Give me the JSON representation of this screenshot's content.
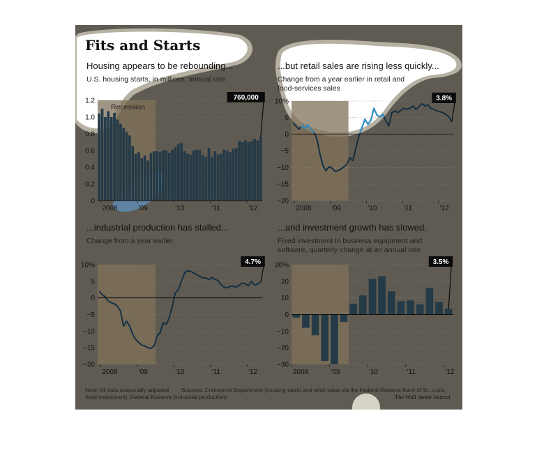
{
  "title": "Fits and Starts",
  "footer": {
    "note": "Note: All data seasonally adjusted",
    "sources_line1": "Sources: Commerce Department (housing starts and retail sales via the Federal Reserve Bank of St. Louis,",
    "sources_line2": "fixed investment); Federal Reserve (industrial production)",
    "credit": "The Wall Street Journal"
  },
  "colors": {
    "background": "#5f5b52",
    "recession_band": "#807259",
    "bar_fill": "#253a47",
    "line": "#143044",
    "callout": "#0b0b0b",
    "highlight_bar": "#8cc0e2",
    "highlight_line": "#2e8ec9",
    "blob": "#ffffff",
    "blob_ring": "#b6b1a3",
    "blue_blob": "#5f84a3",
    "blob_bottom": "#d7d2c6"
  },
  "chart_data": [
    {
      "type": "bar",
      "heading": "Housing appears to be rebounding...",
      "subtitle": [
        "U.S. housing starts, in millions, annual rate"
      ],
      "recession_label": "Recession",
      "callout": "760,000",
      "x_tick_labels": [
        "2008",
        "'09",
        "'10",
        "'11",
        "'12"
      ],
      "x_tick_positions": [
        2008,
        2009,
        2010,
        2011,
        2012
      ],
      "x_start": 2007.917,
      "x_end": 2012.417,
      "recession": [
        2007.917,
        2009.5
      ],
      "y_ticks": [
        0,
        0.2,
        0.4,
        0.6,
        0.8,
        1.0,
        1.2
      ],
      "y_tick_labels": [
        "0",
        "0.2",
        "0.4",
        "0.6",
        "0.8",
        "1.0",
        "1.2"
      ],
      "ylim": [
        0,
        1.2
      ],
      "values": [
        1.04,
        1.1,
        1.0,
        1.07,
        1.0,
        1.05,
        0.97,
        0.92,
        0.87,
        0.82,
        0.78,
        0.65,
        0.56,
        0.58,
        0.51,
        0.54,
        0.48,
        0.57,
        0.59,
        0.59,
        0.58,
        0.6,
        0.6,
        0.57,
        0.61,
        0.64,
        0.68,
        0.69,
        0.59,
        0.56,
        0.55,
        0.6,
        0.61,
        0.61,
        0.54,
        0.52,
        0.63,
        0.52,
        0.59,
        0.55,
        0.56,
        0.61,
        0.6,
        0.58,
        0.62,
        0.63,
        0.71,
        0.7,
        0.72,
        0.7,
        0.71,
        0.74,
        0.72,
        0.76
      ]
    },
    {
      "type": "line",
      "heading": "...but retail sales are rising less quickly...",
      "subtitle": [
        "Change from a year earlier in retail and",
        "food-services sales"
      ],
      "callout": "3.8%",
      "x_tick_labels": [
        "2008",
        "'09",
        "'10",
        "'11",
        "'12"
      ],
      "x_tick_positions": [
        2008,
        2009,
        2010,
        2011,
        2012
      ],
      "x_start": 2007.917,
      "x_end": 2012.417,
      "recession": [
        2007.917,
        2009.5
      ],
      "y_ticks": [
        -20,
        -15,
        -10,
        -5,
        0,
        5,
        10
      ],
      "y_tick_labels": [
        "−20",
        "−15",
        "−10",
        "−5",
        "0",
        "5",
        "10%"
      ],
      "ylim": [
        -20,
        10
      ],
      "values": [
        3.5,
        2.4,
        1.5,
        2.6,
        1.8,
        2.8,
        1.4,
        0.6,
        -1.5,
        -6.0,
        -9.5,
        -11.0,
        -9.8,
        -10.2,
        -11.2,
        -11.0,
        -10.5,
        -9.8,
        -9.0,
        -7.0,
        -8.0,
        -4.0,
        -0.5,
        2.0,
        4.5,
        3.0,
        4.2,
        7.8,
        5.8,
        5.2,
        6.0,
        4.0,
        2.5,
        6.5,
        7.0,
        6.5,
        7.2,
        7.8,
        7.5,
        7.8,
        8.5,
        7.5,
        8.2,
        9.2,
        8.5,
        8.8,
        7.8,
        7.5,
        7.0,
        6.8,
        6.5,
        6.0,
        5.2,
        3.8
      ]
    },
    {
      "type": "line",
      "heading": "...industrial production has stalled...",
      "subtitle": [
        "Change from a year earlier"
      ],
      "callout": "4.7%",
      "x_tick_labels": [
        "2008",
        "'09",
        "'10",
        "'11",
        "'12"
      ],
      "x_tick_positions": [
        2008,
        2009,
        2010,
        2011,
        2012
      ],
      "x_start": 2007.917,
      "x_end": 2012.417,
      "recession": [
        2007.917,
        2009.5
      ],
      "y_ticks": [
        -20,
        -15,
        -10,
        -5,
        0,
        5,
        10
      ],
      "y_tick_labels": [
        "−20",
        "−15",
        "−10",
        "−5",
        "0",
        "5",
        "10%"
      ],
      "ylim": [
        -20,
        10
      ],
      "values": [
        2.0,
        1.0,
        0.3,
        -1.0,
        -1.5,
        -1.8,
        -2.5,
        -4.0,
        -8.5,
        -7.0,
        -8.5,
        -11.0,
        -12.5,
        -13.5,
        -14.2,
        -14.5,
        -15.0,
        -15.2,
        -14.5,
        -11.5,
        -10.5,
        -7.5,
        -8.0,
        -6.0,
        -2.5,
        1.5,
        2.5,
        5.0,
        7.5,
        8.2,
        8.0,
        7.5,
        7.0,
        6.5,
        6.0,
        6.0,
        5.5,
        6.2,
        5.5,
        5.2,
        4.0,
        3.2,
        3.0,
        3.5,
        3.5,
        3.2,
        3.8,
        4.5,
        4.2,
        3.6,
        5.0,
        3.8,
        4.2,
        4.7
      ]
    },
    {
      "type": "bar",
      "heading": "...and investment growth has slowed.",
      "subtitle": [
        "Fixed investment in business equipment and",
        "software, quarterly change at an annual rate"
      ],
      "callout": "3.5%",
      "x_tick_labels": [
        "2008",
        "'09",
        "'10",
        "'11",
        "'12"
      ],
      "x_tick_positions": [
        2008,
        2009,
        2010,
        2011,
        2012
      ],
      "x_start": 2008.0,
      "x_end": 2012.25,
      "recession": [
        2008.0,
        2009.5
      ],
      "y_ticks": [
        -30,
        -20,
        -10,
        0,
        10,
        20,
        30
      ],
      "y_tick_labels": [
        "−30",
        "−20",
        "−10",
        "0",
        "10",
        "20",
        "30%"
      ],
      "ylim": [
        -30,
        30
      ],
      "values": [
        -2.0,
        -8.0,
        -12.5,
        -28.0,
        -30.0,
        -4.5,
        6.5,
        11.5,
        21.5,
        23.0,
        14.0,
        8.0,
        8.5,
        6.0,
        16.0,
        7.5,
        3.5
      ]
    }
  ]
}
